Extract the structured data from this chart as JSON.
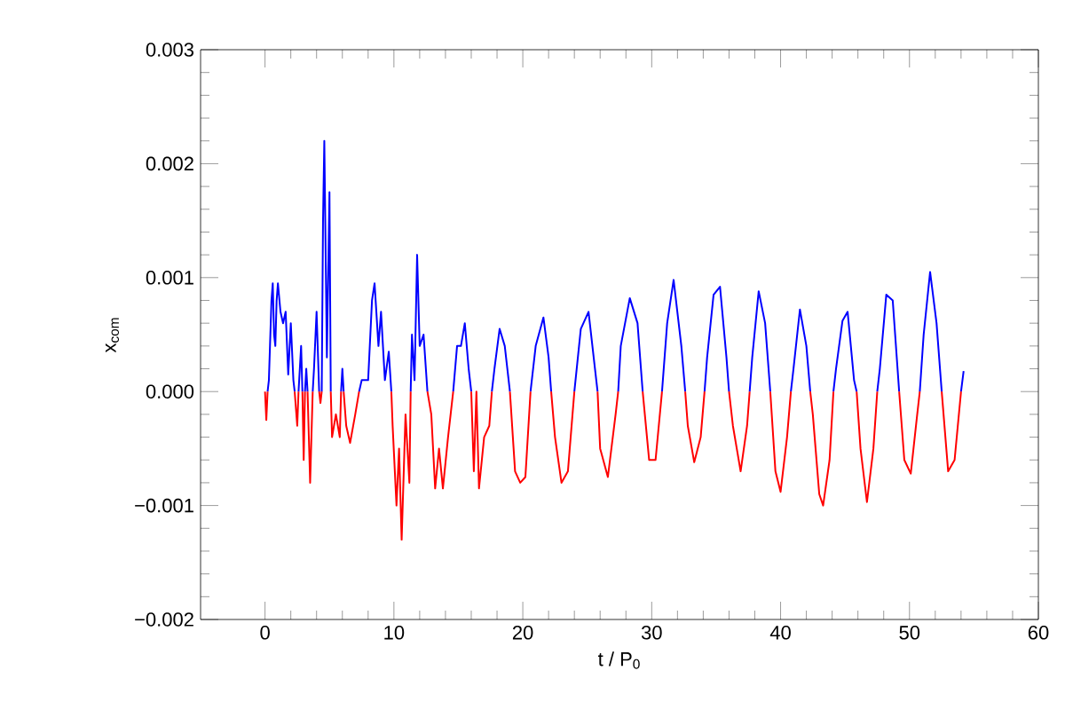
{
  "chart_data": {
    "type": "line",
    "xlabel": "t / P$_{0}$",
    "ylabel": "x$_{com}$",
    "xlim": [
      -5,
      60
    ],
    "xticks": [
      0,
      10,
      20,
      30,
      40,
      50,
      60
    ],
    "ylim": [
      -0.002,
      0.003
    ],
    "yticks": [
      {
        "value": -0.002,
        "label": "−0.002"
      },
      {
        "value": -0.001,
        "label": "−0.001"
      },
      {
        "value": 0,
        "label": "0.000"
      },
      {
        "value": 0.001,
        "label": "0.001"
      },
      {
        "value": 0.002,
        "label": "0.002"
      },
      {
        "value": 0.003,
        "label": "0.003"
      }
    ],
    "grid": false,
    "series": [
      {
        "color": "#0000ff",
        "x": [
          0.2,
          0.3,
          0.5,
          0.6,
          0.7,
          0.8,
          0.9,
          1.0,
          1.2,
          1.4,
          1.6,
          1.8,
          2.0,
          2.2,
          2.3,
          2.45,
          2.6,
          2.8,
          2.9,
          3.0,
          3.1,
          3.2,
          3.3,
          3.5,
          3.7,
          3.8,
          4.0,
          4.2,
          4.3,
          4.4,
          4.5,
          4.6,
          4.8,
          5.0,
          5.1,
          5.5,
          5.9,
          6.0,
          6.1,
          6.7,
          7.3,
          7.5,
          8.0,
          8.3,
          8.5,
          8.8,
          9.0,
          9.3,
          9.6,
          9.8,
          10.5,
          11.3,
          11.4,
          11.6,
          11.8,
          12.0,
          12.3,
          12.6,
          13.6,
          14.6,
          14.9,
          15.2,
          15.5,
          15.8,
          16.0,
          16.8,
          17.6,
          17.8,
          18.2,
          18.6,
          19.0,
          19.8,
          20.6,
          21.0,
          21.6,
          22.0,
          22.2,
          23.1,
          24.0,
          24.5,
          25.1,
          25.6,
          25.8,
          26.6,
          27.4,
          27.6,
          28.3,
          28.9,
          29.3,
          30.0,
          30.8,
          31.2,
          31.7,
          32.3,
          32.6,
          33.4,
          34.1,
          34.3,
          34.8,
          35.3,
          35.8,
          36.0,
          36.8,
          37.6,
          37.8,
          38.3,
          38.8,
          39.2,
          40.0,
          40.8,
          41.0,
          41.5,
          42.0,
          42.3,
          43.2,
          44.1,
          44.3,
          44.8,
          45.2,
          45.7,
          45.9,
          46.7,
          47.5,
          47.7,
          48.2,
          48.7,
          49.2,
          50.0,
          50.8,
          51.1,
          51.6,
          52.1,
          52.5,
          53.2,
          54.0,
          54.2
        ],
        "values": [
          0,
          0.0001,
          0.0008,
          0.00095,
          0.0005,
          0.0004,
          0.0008,
          0.00095,
          0.0007,
          0.0006,
          0.0007,
          0.00015,
          0.0006,
          0.0001,
          0,
          null,
          0,
          0.0004,
          0,
          null,
          0,
          0.0002,
          0,
          null,
          0,
          0.0002,
          0.0007,
          0,
          null,
          0,
          0.0015,
          0.0022,
          0.0003,
          0.00175,
          0,
          null,
          0,
          0.0002,
          0,
          null,
          0,
          0.0001,
          0.0001,
          0.0008,
          0.00095,
          0.0004,
          0.0007,
          0.0001,
          0.00035,
          0,
          null,
          0,
          0.0005,
          0.0001,
          0.0012,
          0.0004,
          0.0005,
          0,
          null,
          0,
          0.0004,
          0.0004,
          0.0006,
          0.0002,
          0,
          null,
          0,
          0.0002,
          0.00055,
          0.0004,
          0,
          null,
          0,
          0.0004,
          0.00065,
          0.0003,
          0,
          null,
          0,
          0.00055,
          0.0007,
          0.0002,
          0,
          null,
          0,
          0.0004,
          0.00082,
          0.0006,
          0,
          null,
          0,
          0.0006,
          0.00098,
          0.0004,
          0,
          null,
          0,
          0.0003,
          0.00085,
          0.00092,
          0.0003,
          0,
          null,
          0,
          0.0003,
          0.00088,
          0.0006,
          0,
          null,
          0,
          0.0002,
          0.00072,
          0.0004,
          0,
          null,
          0,
          0.0002,
          0.00062,
          0.0007,
          0.0001,
          0,
          null,
          0,
          0.0002,
          0.00085,
          0.0008,
          0,
          null,
          0,
          0.0005,
          0.00105,
          0.0006,
          0,
          null,
          0,
          0.00018
        ]
      },
      {
        "color": "#ff0000",
        "x": [
          0,
          0.1,
          0.2,
          1.2,
          2.3,
          2.5,
          2.6,
          2.75,
          2.9,
          3.0,
          3.1,
          3.2,
          3.3,
          3.5,
          3.7,
          3.9,
          4.2,
          4.3,
          4.4,
          4.7,
          5.1,
          5.2,
          5.5,
          5.8,
          5.9,
          6.0,
          6.1,
          6.3,
          6.6,
          7.0,
          7.3,
          8.5,
          9.8,
          9.9,
          10.2,
          10.4,
          10.6,
          10.9,
          11.2,
          11.3,
          12.0,
          12.6,
          12.9,
          13.2,
          13.5,
          13.8,
          14.2,
          14.6,
          15.3,
          16.0,
          16.2,
          16.4,
          16.6,
          17.0,
          17.4,
          17.6,
          18.3,
          19.0,
          19.4,
          19.8,
          20.2,
          20.6,
          21.4,
          22.2,
          22.5,
          23.0,
          23.5,
          24.0,
          24.9,
          25.8,
          26.0,
          26.6,
          27.2,
          27.4,
          28.3,
          29.3,
          29.8,
          30.3,
          30.8,
          31.7,
          32.6,
          32.8,
          33.3,
          33.8,
          34.1,
          35.0,
          36.0,
          36.3,
          36.9,
          37.4,
          37.6,
          38.4,
          39.2,
          39.6,
          40.0,
          40.5,
          40.8,
          41.5,
          42.3,
          42.5,
          43.0,
          43.3,
          43.8,
          44.1,
          45.0,
          45.9,
          46.2,
          46.7,
          47.2,
          47.5,
          48.3,
          49.2,
          49.6,
          50.1,
          50.6,
          50.8,
          51.6,
          52.5,
          53.0,
          53.5,
          54.0
        ],
        "values": [
          0,
          -0.00025,
          0,
          null,
          0,
          -0.0003,
          0,
          null,
          0,
          -0.0006,
          0,
          null,
          0,
          -0.0008,
          0,
          null,
          0,
          -0.0001,
          0,
          null,
          0,
          -0.0004,
          -0.0002,
          -0.0004,
          0,
          null,
          0,
          -0.0003,
          -0.00045,
          -0.0002,
          0,
          null,
          0,
          -0.0003,
          -0.001,
          -0.0005,
          -0.0013,
          -0.0002,
          -0.0008,
          0,
          null,
          0,
          -0.0002,
          -0.00085,
          -0.0005,
          -0.00085,
          -0.0004,
          0,
          null,
          0,
          -0.0007,
          0,
          -0.00085,
          -0.0004,
          -0.0003,
          0,
          null,
          0,
          -0.0007,
          -0.0008,
          -0.00075,
          0,
          null,
          0,
          -0.0004,
          -0.0008,
          -0.0007,
          0,
          null,
          0,
          -0.0005,
          -0.00075,
          -0.0002,
          0,
          null,
          0,
          -0.0006,
          -0.0006,
          0,
          null,
          0,
          -0.0003,
          -0.00062,
          -0.0004,
          0,
          null,
          0,
          -0.0003,
          -0.0007,
          -0.0003,
          0,
          null,
          0,
          -0.0007,
          -0.00088,
          -0.0004,
          0,
          null,
          0,
          -0.0002,
          -0.0009,
          -0.001,
          -0.0006,
          0,
          null,
          0,
          -0.0005,
          -0.00097,
          -0.0005,
          0,
          null,
          0,
          -0.0006,
          -0.00072,
          -0.0002,
          0,
          null,
          0,
          -0.0007,
          -0.0006,
          0
        ]
      }
    ]
  }
}
